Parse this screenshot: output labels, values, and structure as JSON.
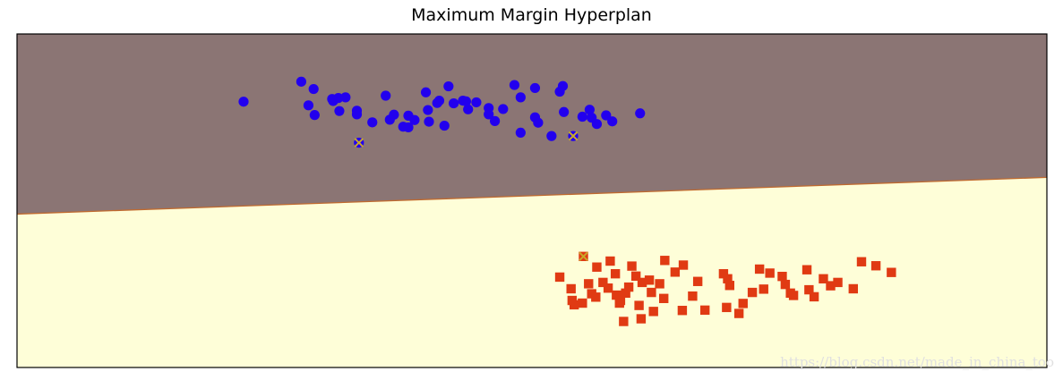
{
  "chart_data": {
    "type": "scatter",
    "title": "Maximum Margin Hyperplan",
    "xlabel": "",
    "ylabel": "",
    "xlim": [
      0,
      100
    ],
    "ylim": [
      0,
      100
    ],
    "axis_ticks": "none",
    "grid": false,
    "decision_regions": {
      "boundary": {
        "x": [
          0,
          100
        ],
        "y": [
          46,
          57
        ]
      },
      "upper_color": "#8b7574",
      "lower_color": "#fefed8",
      "boundary_color": "#c06a2f"
    },
    "series": [
      {
        "class": "upper",
        "marker": "circle",
        "color": "#2200ee",
        "points": [
          [
            22.0,
            79.7
          ],
          [
            27.6,
            85.7
          ],
          [
            28.3,
            78.6
          ],
          [
            28.9,
            75.7
          ],
          [
            30.6,
            80.5
          ],
          [
            31.2,
            80.8
          ],
          [
            31.9,
            81.0
          ],
          [
            33.0,
            77.0
          ],
          [
            33.0,
            75.9
          ],
          [
            34.5,
            73.5
          ],
          [
            36.2,
            74.3
          ],
          [
            36.6,
            75.8
          ],
          [
            35.8,
            81.5
          ],
          [
            38.0,
            75.5
          ],
          [
            38.6,
            74.2
          ],
          [
            37.5,
            72.2
          ],
          [
            40.0,
            73.7
          ],
          [
            38.0,
            72.0
          ],
          [
            41.5,
            72.5
          ],
          [
            41.0,
            80.0
          ],
          [
            39.7,
            82.5
          ],
          [
            39.9,
            77.2
          ],
          [
            41.9,
            84.3
          ],
          [
            42.4,
            79.2
          ],
          [
            43.3,
            80.0
          ],
          [
            43.6,
            79.8
          ],
          [
            44.6,
            79.5
          ],
          [
            43.8,
            77.4
          ],
          [
            45.8,
            77.8
          ],
          [
            46.4,
            73.9
          ],
          [
            47.2,
            77.5
          ],
          [
            48.3,
            84.7
          ],
          [
            48.9,
            81.0
          ],
          [
            50.3,
            75.0
          ],
          [
            50.6,
            73.4
          ],
          [
            53.0,
            84.4
          ],
          [
            53.1,
            76.6
          ],
          [
            54.9,
            75.2
          ],
          [
            56.3,
            73.0
          ],
          [
            57.2,
            75.6
          ],
          [
            57.8,
            73.8
          ],
          [
            55.6,
            77.3
          ],
          [
            45.8,
            75.9
          ],
          [
            48.9,
            70.4
          ],
          [
            40.8,
            79.3
          ],
          [
            30.7,
            79.9
          ],
          [
            28.8,
            83.5
          ],
          [
            31.3,
            76.9
          ],
          [
            51.9,
            69.4
          ],
          [
            60.5,
            76.2
          ],
          [
            55.8,
            74.9
          ],
          [
            52.7,
            82.7
          ],
          [
            50.3,
            83.8
          ]
        ]
      },
      {
        "class": "lower",
        "marker": "square",
        "color": "#e03a13",
        "points": [
          [
            52.7,
            27.1
          ],
          [
            53.8,
            23.6
          ],
          [
            53.9,
            20.1
          ],
          [
            54.1,
            18.8
          ],
          [
            54.9,
            19.3
          ],
          [
            55.5,
            25.1
          ],
          [
            55.8,
            22.1
          ],
          [
            56.3,
            30.1
          ],
          [
            56.9,
            25.5
          ],
          [
            57.4,
            23.8
          ],
          [
            57.6,
            31.9
          ],
          [
            58.1,
            28.1
          ],
          [
            58.2,
            21.7
          ],
          [
            58.6,
            20.1
          ],
          [
            59.1,
            22.3
          ],
          [
            59.7,
            30.4
          ],
          [
            60.1,
            27.4
          ],
          [
            60.4,
            18.6
          ],
          [
            61.6,
            22.5
          ],
          [
            61.8,
            16.8
          ],
          [
            62.4,
            25.1
          ],
          [
            62.8,
            20.7
          ],
          [
            63.9,
            28.6
          ],
          [
            64.6,
            17.1
          ],
          [
            65.6,
            21.4
          ],
          [
            66.1,
            25.8
          ],
          [
            66.8,
            17.2
          ],
          [
            68.6,
            28.1
          ],
          [
            69.2,
            24.6
          ],
          [
            70.5,
            19.2
          ],
          [
            70.1,
            16.2
          ],
          [
            71.4,
            22.5
          ],
          [
            72.1,
            29.5
          ],
          [
            72.5,
            23.5
          ],
          [
            73.1,
            28.3
          ],
          [
            74.3,
            27.3
          ],
          [
            74.6,
            24.9
          ],
          [
            75.1,
            22.3
          ],
          [
            75.4,
            21.6
          ],
          [
            76.9,
            23.3
          ],
          [
            77.4,
            21.2
          ],
          [
            78.3,
            26.6
          ],
          [
            79.0,
            24.5
          ],
          [
            79.7,
            25.5
          ],
          [
            81.2,
            23.6
          ],
          [
            82.0,
            31.7
          ],
          [
            83.4,
            30.5
          ],
          [
            84.9,
            28.5
          ],
          [
            56.2,
            21.1
          ],
          [
            58.5,
            19.3
          ],
          [
            60.7,
            25.5
          ],
          [
            62.9,
            32.1
          ],
          [
            64.7,
            30.7
          ],
          [
            76.7,
            29.3
          ],
          [
            69.0,
            26.6
          ],
          [
            68.9,
            18.0
          ],
          [
            61.4,
            26.2
          ],
          [
            59.4,
            24.1
          ],
          [
            58.9,
            13.8
          ],
          [
            60.6,
            14.6
          ]
        ]
      }
    ],
    "support_vectors": {
      "marker": "x",
      "color": "#c8a82a",
      "points": [
        [
          33.2,
          67.4
        ],
        [
          54.0,
          69.4
        ],
        [
          55.0,
          33.3
        ]
      ]
    }
  },
  "watermark": "https://blog.csdn.net/made_in_china_too"
}
